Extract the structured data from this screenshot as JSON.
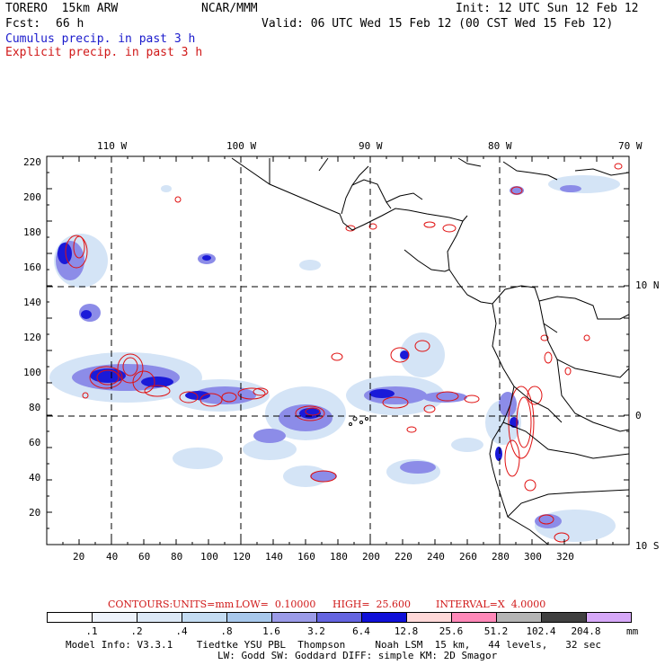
{
  "header": {
    "model": "TORERO  15km ARW",
    "org": "NCAR/MMM",
    "init": "Init: 12 UTC Sun 12 Feb 12",
    "fcst_label": "Fcst:",
    "fcst_value": "66 h",
    "valid": "Valid: 06 UTC Wed 15 Feb 12 (00 CST Wed 15 Feb 12)",
    "legend_cumulus": "Cumulus precip. in past 3 h",
    "legend_explicit": "Explicit precip. in past 3 h"
  },
  "axes": {
    "top_lon": [
      "110 W",
      "100 W",
      "90 W",
      "80 W",
      "70 W"
    ],
    "right_lat": [
      "10 N",
      "0",
      "10 S"
    ],
    "y_ticks": [
      "220",
      "200",
      "180",
      "160",
      "140",
      "120",
      "100",
      "80",
      "60",
      "40",
      "20"
    ],
    "x_ticks": [
      "20",
      "40",
      "60",
      "80",
      "100",
      "120",
      "140",
      "160",
      "180",
      "200",
      "220",
      "240",
      "260",
      "280",
      "300",
      "320"
    ]
  },
  "contours": {
    "label": "CONTOURS:",
    "units": "UNITS=mm",
    "low": "LOW=  0.10000",
    "high": "HIGH=  25.600",
    "interval": "INTERVAL=X  4.0000"
  },
  "colorbar": {
    "labels": [
      ".1",
      ".2",
      ".4",
      ".8",
      "1.6",
      "3.2",
      "6.4",
      "12.8",
      "25.6",
      "51.2",
      "102.4",
      "204.8"
    ],
    "unit": "mm",
    "colors": [
      "#ffffff",
      "#eef3fb",
      "#dce8f6",
      "#c4dcf2",
      "#a8c8ec",
      "#9b9be8",
      "#6464e0",
      "#1010d8",
      "#ffd8d8",
      "#ff88b8",
      "#b4b4b4",
      "#404040",
      "#d6a8f8"
    ]
  },
  "footer": {
    "line1": "Model Info: V3.3.1    Tiedtke YSU PBL  Thompson     Noah LSM  15 km,   44 levels,   32 sec",
    "line2": "LW: Godd SW: Goddard DIFF: simple KM: 2D Smagor"
  }
}
